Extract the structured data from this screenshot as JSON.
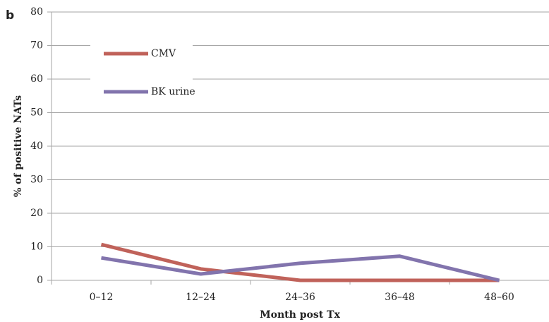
{
  "chart_data": {
    "type": "line",
    "panel_label": "b",
    "x_label": "Month post Tx",
    "y_label": "% of positive NATs",
    "categories": [
      "0–12",
      "12–24",
      "24–36",
      "36–48",
      "48–60"
    ],
    "series": [
      {
        "name": "CMV",
        "color": "#c0625a",
        "values": [
          10.7,
          3.4,
          0,
          0,
          0
        ]
      },
      {
        "name": "BK urine",
        "color": "#8274ad",
        "values": [
          6.7,
          1.9,
          5.1,
          7.2,
          0
        ]
      }
    ],
    "ylim": [
      0,
      80
    ],
    "yticks": [
      0,
      10,
      20,
      30,
      40,
      50,
      60,
      70,
      80
    ],
    "grid": true
  }
}
